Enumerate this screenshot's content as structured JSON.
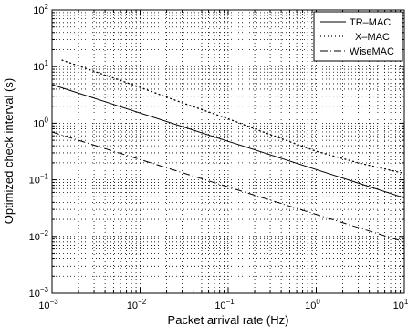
{
  "chart_data": {
    "type": "line",
    "title": "",
    "xlabel": "Packet arrival rate (Hz)",
    "ylabel": "Optimized check interval (s)",
    "xscale": "log",
    "yscale": "log",
    "xlim": [
      0.001,
      10
    ],
    "ylim": [
      0.001,
      100
    ],
    "grid": true,
    "legend_position": "top-right",
    "x_ticks": [
      {
        "value": 0.001,
        "base": "10",
        "exp": "−3"
      },
      {
        "value": 0.01,
        "base": "10",
        "exp": "−2"
      },
      {
        "value": 0.1,
        "base": "10",
        "exp": "−1"
      },
      {
        "value": 1,
        "base": "10",
        "exp": "0"
      },
      {
        "value": 10,
        "base": "10",
        "exp": "1"
      }
    ],
    "y_ticks": [
      {
        "value": 0.001,
        "base": "10",
        "exp": "−3"
      },
      {
        "value": 0.01,
        "base": "10",
        "exp": "−2"
      },
      {
        "value": 0.1,
        "base": "10",
        "exp": "−1"
      },
      {
        "value": 1,
        "base": "10",
        "exp": "0"
      },
      {
        "value": 10,
        "base": "10",
        "exp": "1"
      },
      {
        "value": 100,
        "base": "10",
        "exp": "2"
      }
    ],
    "series": [
      {
        "name": "TR–MAC",
        "style": "solid",
        "x": [
          0.001,
          10
        ],
        "y": [
          4.8,
          0.048
        ]
      },
      {
        "name": "X–MAC",
        "style": "dotted",
        "x": [
          0.0013,
          0.003,
          0.01,
          0.03,
          0.1,
          0.3,
          1,
          3,
          10
        ],
        "y": [
          13,
          8.3,
          4.3,
          2.3,
          1.2,
          0.63,
          0.32,
          0.2,
          0.13
        ]
      },
      {
        "name": "WiseMAC",
        "style": "dashdot",
        "x": [
          0.001,
          10
        ],
        "y": [
          0.7,
          0.008
        ]
      }
    ]
  }
}
